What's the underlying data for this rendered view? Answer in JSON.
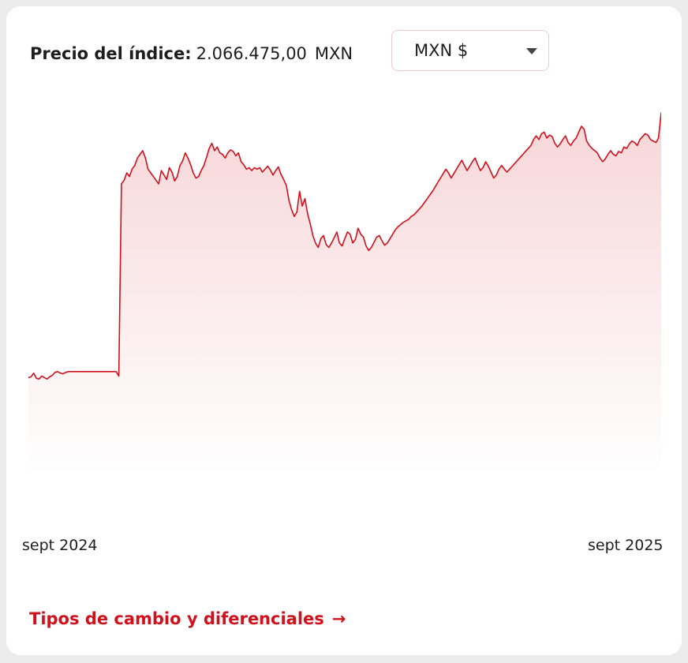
{
  "price": {
    "label": "Precio del índice:",
    "value": "2.066.475,00",
    "unit": "MXN"
  },
  "currency_select": {
    "selected": "MXN $"
  },
  "colors": {
    "line": "#d0101a",
    "fill_top": "#f7d6d8",
    "fill_bottom": "#ffffff",
    "accent": "#d0101a"
  },
  "chart_data": {
    "type": "area",
    "title": "",
    "xlabel": "",
    "ylabel": "",
    "x_tick_labels": [
      "sept 2024",
      "sept 2025"
    ],
    "y": [
      1708000,
      1709000,
      1714000,
      1707000,
      1706000,
      1710000,
      1708000,
      1706000,
      1709000,
      1711000,
      1715000,
      1716000,
      1714000,
      1713000,
      1715000,
      1716000,
      1716000,
      1716000,
      1716000,
      1716000,
      1716000,
      1716000,
      1716000,
      1716000,
      1716000,
      1716000,
      1716000,
      1716000,
      1716000,
      1716000,
      1716000,
      1716000,
      1716000,
      1716000,
      1710000,
      1970000,
      1975000,
      1985000,
      1980000,
      1990000,
      1995000,
      2005000,
      2010000,
      2015000,
      2005000,
      1990000,
      1985000,
      1980000,
      1975000,
      1970000,
      1988000,
      1982000,
      1976000,
      1992000,
      1986000,
      1974000,
      1980000,
      1995000,
      2001000,
      2012000,
      2005000,
      1996000,
      1985000,
      1978000,
      1980000,
      1988000,
      1995000,
      2006000,
      2018000,
      2025000,
      2015000,
      2020000,
      2012000,
      2010000,
      2005000,
      2012000,
      2016000,
      2014000,
      2008000,
      2012000,
      2000000,
      1996000,
      1990000,
      1992000,
      1988000,
      1992000,
      1990000,
      1992000,
      1986000,
      1990000,
      1994000,
      1989000,
      1982000,
      1988000,
      1993000,
      1983000,
      1976000,
      1968000,
      1948000,
      1935000,
      1926000,
      1932000,
      1960000,
      1940000,
      1950000,
      1930000,
      1916000,
      1900000,
      1890000,
      1884000,
      1896000,
      1900000,
      1888000,
      1884000,
      1890000,
      1897000,
      1905000,
      1890000,
      1886000,
      1896000,
      1905000,
      1902000,
      1890000,
      1895000,
      1910000,
      1902000,
      1898000,
      1886000,
      1880000,
      1884000,
      1891000,
      1898000,
      1900000,
      1893000,
      1887000,
      1890000,
      1896000,
      1902000,
      1908000,
      1912000,
      1915000,
      1918000,
      1920000,
      1922000,
      1926000,
      1928000,
      1932000,
      1936000,
      1940000,
      1945000,
      1950000,
      1955000,
      1960000,
      1966000,
      1972000,
      1978000,
      1984000,
      1990000,
      1985000,
      1978000,
      1984000,
      1990000,
      1996000,
      2002000,
      1995000,
      1988000,
      1994000,
      2000000,
      2005000,
      1996000,
      1988000,
      1992000,
      2000000,
      1994000,
      1986000,
      1978000,
      1982000,
      1990000,
      1995000,
      1990000,
      1986000,
      1990000,
      1994000,
      1998000,
      2002000,
      2006000,
      2010000,
      2014000,
      2018000,
      2022000,
      2030000,
      2035000,
      2030000,
      2038000,
      2040000,
      2032000,
      2036000,
      2034000,
      2025000,
      2020000,
      2024000,
      2030000,
      2035000,
      2026000,
      2022000,
      2028000,
      2032000,
      2040000,
      2048000,
      2044000,
      2028000,
      2022000,
      2018000,
      2015000,
      2012000,
      2005000,
      2000000,
      2004000,
      2010000,
      2015000,
      2010000,
      2008000,
      2014000,
      2012000,
      2020000,
      2018000,
      2024000,
      2028000,
      2026000,
      2022000,
      2030000,
      2034000,
      2038000,
      2036000,
      2030000,
      2028000,
      2026000,
      2032000,
      2066475
    ]
  },
  "link": {
    "label": "Tipos de cambio y diferenciales",
    "arrow": "→"
  }
}
